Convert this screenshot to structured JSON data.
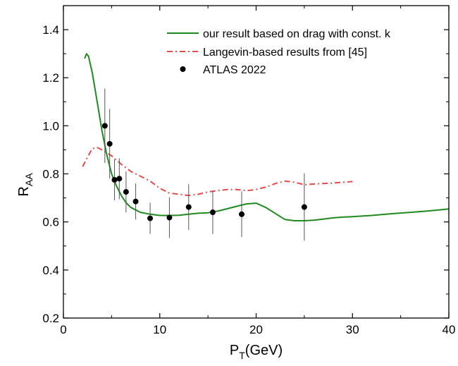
{
  "chart_data": {
    "type": "line",
    "title": "",
    "xlabel_main": "P",
    "xlabel_sub": "T",
    "xlabel_unit": "(GeV)",
    "ylabel_main": "R",
    "ylabel_sub": "AA",
    "xlim": [
      0,
      40
    ],
    "ylim": [
      0.2,
      1.5
    ],
    "xticks": [
      0,
      10,
      20,
      30,
      40
    ],
    "xtick_labels": [
      "0",
      "10",
      "20",
      "30",
      "40"
    ],
    "yticks": [
      0.2,
      0.4,
      0.6,
      0.8,
      1.0,
      1.2,
      1.4
    ],
    "ytick_labels": [
      "0.2",
      "0.4",
      "0.6",
      "0.8",
      "1.0",
      "1.2",
      "1.4"
    ],
    "grid": false,
    "legend_position": "top-right",
    "series": [
      {
        "name": "our result based on drag with const. k",
        "style": "solid",
        "color": "#1f8a1f",
        "points": [
          [
            2.2,
            1.28
          ],
          [
            2.4,
            1.3
          ],
          [
            2.6,
            1.29
          ],
          [
            3.0,
            1.22
          ],
          [
            3.5,
            1.1
          ],
          [
            4.0,
            0.98
          ],
          [
            4.5,
            0.88
          ],
          [
            5.0,
            0.8
          ],
          [
            5.5,
            0.75
          ],
          [
            6.0,
            0.71
          ],
          [
            6.5,
            0.68
          ],
          [
            7.0,
            0.66
          ],
          [
            7.5,
            0.65
          ],
          [
            8.0,
            0.64
          ],
          [
            9.0,
            0.632
          ],
          [
            10.0,
            0.627
          ],
          [
            11.0,
            0.627
          ],
          [
            12.0,
            0.628
          ],
          [
            13.0,
            0.632
          ],
          [
            14.0,
            0.636
          ],
          [
            15.0,
            0.638
          ],
          [
            16.0,
            0.645
          ],
          [
            17.0,
            0.655
          ],
          [
            18.0,
            0.665
          ],
          [
            19.0,
            0.675
          ],
          [
            20.0,
            0.678
          ],
          [
            21.0,
            0.66
          ],
          [
            22.0,
            0.635
          ],
          [
            23.0,
            0.61
          ],
          [
            24.0,
            0.605
          ],
          [
            25.0,
            0.605
          ],
          [
            26.0,
            0.607
          ],
          [
            27.0,
            0.612
          ],
          [
            28.0,
            0.617
          ],
          [
            29.0,
            0.62
          ],
          [
            30.0,
            0.622
          ],
          [
            32.0,
            0.627
          ],
          [
            34.0,
            0.634
          ],
          [
            36.0,
            0.64
          ],
          [
            38.0,
            0.646
          ],
          [
            40.0,
            0.654
          ]
        ]
      },
      {
        "name": "Langevin-based results from [45]",
        "style": "dashed",
        "color": "#e84a4a",
        "points": [
          [
            2.0,
            0.83
          ],
          [
            2.5,
            0.87
          ],
          [
            3.0,
            0.905
          ],
          [
            3.5,
            0.91
          ],
          [
            4.0,
            0.9
          ],
          [
            5.0,
            0.875
          ],
          [
            6.0,
            0.84
          ],
          [
            7.0,
            0.81
          ],
          [
            8.0,
            0.79
          ],
          [
            9.0,
            0.77
          ],
          [
            10.0,
            0.74
          ],
          [
            11.0,
            0.72
          ],
          [
            12.0,
            0.715
          ],
          [
            13.0,
            0.71
          ],
          [
            14.0,
            0.715
          ],
          [
            15.0,
            0.725
          ],
          [
            16.0,
            0.73
          ],
          [
            17.0,
            0.735
          ],
          [
            18.0,
            0.735
          ],
          [
            19.0,
            0.73
          ],
          [
            20.0,
            0.735
          ],
          [
            21.0,
            0.745
          ],
          [
            22.0,
            0.76
          ],
          [
            23.0,
            0.77
          ],
          [
            24.0,
            0.765
          ],
          [
            25.0,
            0.755
          ],
          [
            26.0,
            0.758
          ],
          [
            27.0,
            0.76
          ],
          [
            28.0,
            0.762
          ],
          [
            29.0,
            0.765
          ],
          [
            30.0,
            0.768
          ]
        ]
      },
      {
        "name": "ATLAS 2022",
        "style": "markers",
        "color": "#000000",
        "points": [
          [
            4.3,
            1.0
          ],
          [
            4.8,
            0.925
          ],
          [
            5.3,
            0.775
          ],
          [
            5.8,
            0.78
          ],
          [
            6.5,
            0.725
          ],
          [
            7.5,
            0.685
          ],
          [
            9.0,
            0.615
          ],
          [
            11.0,
            0.618
          ],
          [
            13.0,
            0.662
          ],
          [
            15.5,
            0.64
          ],
          [
            18.5,
            0.632
          ],
          [
            25.0,
            0.662
          ]
        ],
        "errors": [
          0.155,
          0.145,
          0.085,
          0.085,
          0.085,
          0.075,
          0.065,
          0.085,
          0.095,
          0.09,
          0.095,
          0.14
        ]
      }
    ]
  }
}
